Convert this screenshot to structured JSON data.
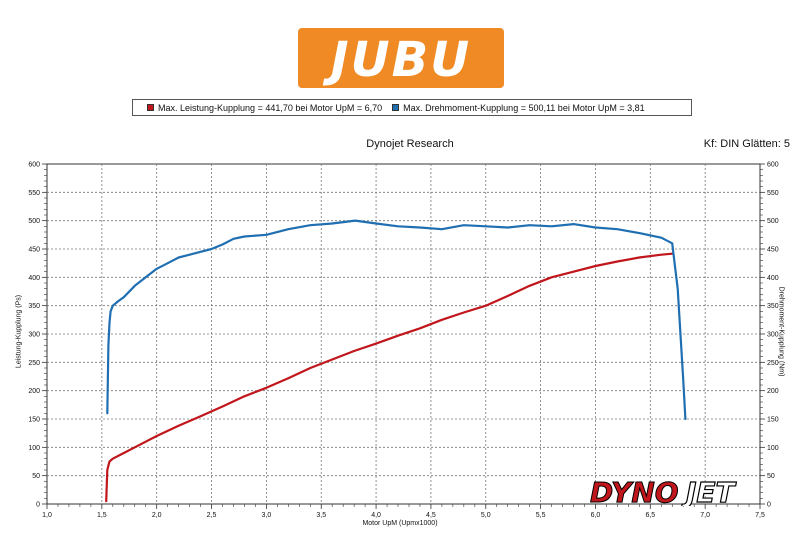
{
  "logo": {
    "text": "JUBU",
    "color": "#f08a24"
  },
  "legend": {
    "items": [
      {
        "label": "Max. Leistung-Kupplung = 441,70 bei Motor UpM = 6,70",
        "color": "#c0161c"
      },
      {
        "label": "Max. Drehmoment-Kupplung = 500,11 bei Motor UpM = 3,81",
        "color": "#1f6fb2"
      }
    ]
  },
  "header": {
    "title": "Dynojet Research",
    "right": "Kf: DIN Glätten: 5"
  },
  "brand": {
    "text_a": "DYNO",
    "text_b": "JET",
    "color": "#c0161c"
  },
  "chart_data": {
    "type": "line",
    "xlabel": "Motor UpM (Upmx1000)",
    "ylabel_left": "Leistung-Kupplung (Ps)",
    "ylabel_right": "Drehmoment-Kupplung (Nm)",
    "xlim": [
      1.0,
      7.5
    ],
    "ylim": [
      0,
      600
    ],
    "x_ticks": [
      "1,0",
      "1,5",
      "2,0",
      "2,5",
      "3,0",
      "3,5",
      "4,0",
      "4,5",
      "5,0",
      "5,5",
      "6,0",
      "6,5",
      "7,0",
      "7,5"
    ],
    "y_ticks_left": [
      "0",
      "50",
      "100",
      "150",
      "200",
      "250",
      "300",
      "350",
      "400",
      "450",
      "500",
      "550",
      "600"
    ],
    "y_ticks_right": [
      "0",
      "50",
      "100",
      "150",
      "200",
      "250",
      "300",
      "350",
      "400",
      "450",
      "500",
      "550",
      "600"
    ],
    "grid": true,
    "series": [
      {
        "name": "Leistung-Kupplung",
        "axis": "left",
        "color": "#c0161c",
        "x": [
          1.54,
          1.55,
          1.57,
          1.6,
          1.7,
          1.8,
          1.9,
          2.0,
          2.2,
          2.4,
          2.6,
          2.8,
          3.0,
          3.2,
          3.4,
          3.6,
          3.8,
          4.0,
          4.2,
          4.4,
          4.6,
          4.8,
          5.0,
          5.2,
          5.4,
          5.6,
          5.8,
          6.0,
          6.2,
          6.4,
          6.6,
          6.7
        ],
        "y": [
          5,
          60,
          75,
          80,
          90,
          100,
          110,
          120,
          138,
          155,
          172,
          190,
          205,
          222,
          240,
          255,
          270,
          283,
          297,
          310,
          325,
          338,
          350,
          367,
          385,
          400,
          410,
          420,
          428,
          435,
          440,
          441.7
        ]
      },
      {
        "name": "Drehmoment-Kupplung",
        "axis": "right",
        "color": "#1f6fb2",
        "x": [
          1.55,
          1.56,
          1.57,
          1.58,
          1.6,
          1.65,
          1.7,
          1.8,
          1.9,
          2.0,
          2.1,
          2.2,
          2.3,
          2.4,
          2.5,
          2.6,
          2.7,
          2.8,
          3.0,
          3.2,
          3.4,
          3.6,
          3.81,
          4.0,
          4.2,
          4.4,
          4.6,
          4.8,
          5.0,
          5.2,
          5.4,
          5.6,
          5.8,
          6.0,
          6.2,
          6.4,
          6.6,
          6.7,
          6.75,
          6.8,
          6.82
        ],
        "y": [
          160,
          280,
          320,
          340,
          350,
          358,
          365,
          385,
          400,
          415,
          425,
          435,
          440,
          445,
          450,
          458,
          468,
          472,
          475,
          485,
          492,
          495,
          500.11,
          495,
          490,
          488,
          485,
          492,
          490,
          488,
          492,
          490,
          494,
          488,
          485,
          478,
          470,
          460,
          380,
          220,
          150
        ]
      }
    ]
  }
}
